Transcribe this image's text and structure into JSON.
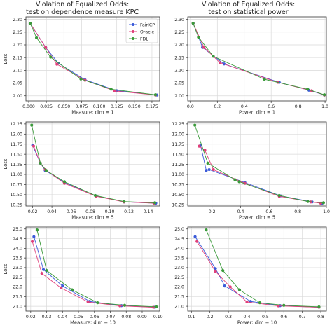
{
  "header": {
    "left_title": [
      "Violation of Equalized Odds:",
      "test on dependence measure KPC"
    ],
    "right_title": [
      "Violation of Equalized Odds:",
      "test on statistical power"
    ]
  },
  "legend": [
    {
      "name": "FairICP",
      "color": "#3b5bd9"
    },
    {
      "name": "Oracle",
      "color": "#e0407a"
    },
    {
      "name": "FDL",
      "color": "#3a9a3a"
    }
  ],
  "chart_data": [
    {
      "type": "line",
      "panel": "row1-left",
      "xlabel": "Measure: dim = 1",
      "ylabel": "Loss",
      "xlim": [
        -0.004,
        0.186
      ],
      "ylim": [
        1.98,
        2.31
      ],
      "xticks": [
        0.0,
        0.025,
        0.05,
        0.075,
        0.1,
        0.125,
        0.15,
        0.175
      ],
      "xtick_labels": [
        "0.000",
        "0.025",
        "0.050",
        "0.075",
        "0.100",
        "0.125",
        "0.150",
        "0.175"
      ],
      "yticks": [
        2.0,
        2.05,
        2.1,
        2.15,
        2.2,
        2.25,
        2.3
      ],
      "ytick_labels": [
        "2.00",
        "2.05",
        "2.10",
        "2.15",
        "2.20",
        "2.25",
        "2.30"
      ],
      "grid": true,
      "legend_position": "top-right",
      "series": [
        {
          "name": "FairICP",
          "x": [
            0.002,
            0.024,
            0.042,
            0.08,
            0.125,
            0.182
          ],
          "y": [
            2.285,
            2.19,
            2.128,
            2.063,
            2.02,
            2.003
          ]
        },
        {
          "name": "Oracle",
          "x": [
            0.002,
            0.024,
            0.04,
            0.08,
            0.122,
            0.18
          ],
          "y": [
            2.285,
            2.19,
            2.124,
            2.061,
            2.019,
            2.003
          ]
        },
        {
          "name": "FDL",
          "x": [
            0.002,
            0.011,
            0.031,
            0.074,
            0.117,
            0.18
          ],
          "y": [
            2.285,
            2.228,
            2.152,
            2.066,
            2.026,
            2.004
          ]
        }
      ]
    },
    {
      "type": "line",
      "panel": "row1-right",
      "xlabel": "Power: dim = 1",
      "ylabel": "",
      "xlim": [
        -0.02,
        1.01
      ],
      "ylim": [
        1.98,
        2.31
      ],
      "xticks": [
        0.0,
        0.2,
        0.4,
        0.6,
        0.8,
        1.0
      ],
      "xtick_labels": [
        "0.0",
        "0.2",
        "0.4",
        "0.6",
        "0.8",
        "1.0"
      ],
      "yticks": [
        2.0,
        2.05,
        2.1,
        2.15,
        2.2,
        2.25,
        2.3
      ],
      "ytick_labels": [
        "2.00",
        "2.05",
        "2.10",
        "2.15",
        "2.20",
        "2.25",
        "2.30"
      ],
      "grid": true,
      "series": [
        {
          "name": "FairICP",
          "x": [
            0.02,
            0.09,
            0.25,
            0.66,
            0.88,
            0.995
          ],
          "y": [
            2.285,
            2.19,
            2.125,
            2.053,
            2.022,
            2.003
          ]
        },
        {
          "name": "Oracle",
          "x": [
            0.02,
            0.1,
            0.22,
            0.65,
            0.9,
            0.995
          ],
          "y": [
            2.285,
            2.19,
            2.13,
            2.053,
            2.02,
            2.003
          ]
        },
        {
          "name": "FDL",
          "x": [
            0.02,
            0.06,
            0.17,
            0.55,
            0.87,
            0.995
          ],
          "y": [
            2.285,
            2.23,
            2.155,
            2.065,
            2.026,
            2.004
          ]
        }
      ]
    },
    {
      "type": "line",
      "panel": "row2-left",
      "xlabel": "Measure: dim = 5",
      "ylabel": "Loss",
      "xlim": [
        0.013,
        0.152
      ],
      "ylim": [
        10.22,
        12.3
      ],
      "xticks": [
        0.02,
        0.04,
        0.06,
        0.08,
        0.1,
        0.12,
        0.14
      ],
      "xtick_labels": [
        "0.02",
        "0.04",
        "0.06",
        "0.08",
        "0.10",
        "0.12",
        "0.14"
      ],
      "yticks": [
        10.25,
        10.5,
        10.75,
        11.0,
        11.25,
        11.5,
        11.75,
        12.0,
        12.25
      ],
      "ytick_labels": [
        "10.25",
        "10.50",
        "10.75",
        "11.00",
        "11.25",
        "11.50",
        "11.75",
        "12.00",
        "12.25"
      ],
      "grid": true,
      "series": [
        {
          "name": "FairICP",
          "x": [
            0.02,
            0.028,
            0.033,
            0.053,
            0.086,
            0.115,
            0.148
          ],
          "y": [
            11.72,
            11.28,
            11.1,
            10.8,
            10.47,
            10.32,
            10.29
          ]
        },
        {
          "name": "Oracle",
          "x": [
            0.021,
            0.028,
            0.033,
            0.053,
            0.086,
            0.115,
            0.146
          ],
          "y": [
            11.7,
            11.28,
            11.12,
            10.78,
            10.46,
            10.32,
            10.29
          ]
        },
        {
          "name": "FDL",
          "x": [
            0.019,
            0.028,
            0.034,
            0.053,
            0.085,
            0.115,
            0.147
          ],
          "y": [
            12.22,
            11.28,
            11.1,
            10.82,
            10.48,
            10.33,
            10.3
          ]
        }
      ]
    },
    {
      "type": "line",
      "panel": "row2-right",
      "xlabel": "Power: dim = 5",
      "ylabel": "",
      "xlim": [
        0.03,
        1.0
      ],
      "ylim": [
        10.22,
        12.3
      ],
      "xticks": [
        0.2,
        0.4,
        0.6,
        0.8,
        1.0
      ],
      "xtick_labels": [
        "0.2",
        "0.4",
        "0.6",
        "0.8",
        "1.0"
      ],
      "yticks": [
        10.25,
        10.5,
        10.75,
        11.0,
        11.25,
        11.5,
        11.75,
        12.0,
        12.25
      ],
      "ytick_labels": [
        "10.25",
        "10.50",
        "10.75",
        "11.00",
        "11.25",
        "11.50",
        "11.75",
        "12.00",
        "12.25"
      ],
      "grid": true,
      "series": [
        {
          "name": "FairICP",
          "x": [
            0.12,
            0.16,
            0.18,
            0.43,
            0.68,
            0.9,
            0.97
          ],
          "y": [
            11.72,
            11.1,
            11.12,
            10.8,
            10.47,
            10.32,
            10.29
          ]
        },
        {
          "name": "Oracle",
          "x": [
            0.11,
            0.15,
            0.21,
            0.43,
            0.67,
            0.89,
            0.96
          ],
          "y": [
            11.7,
            11.6,
            11.12,
            10.78,
            10.46,
            10.32,
            10.29
          ]
        },
        {
          "name": "FDL",
          "x": [
            0.08,
            0.17,
            0.36,
            0.39,
            0.67,
            0.87,
            0.98
          ],
          "y": [
            12.22,
            11.28,
            10.87,
            10.82,
            10.48,
            10.33,
            10.3
          ]
        }
      ]
    },
    {
      "type": "line",
      "panel": "row3-left",
      "xlabel": "Measure: dim = 10",
      "ylabel": "Loss",
      "xlim": [
        0.017,
        0.101
      ],
      "ylim": [
        20.75,
        25.1
      ],
      "xticks": [
        0.02,
        0.03,
        0.04,
        0.05,
        0.06,
        0.07,
        0.08,
        0.09,
        0.1
      ],
      "xtick_labels": [
        "0.02",
        "0.03",
        "0.04",
        "0.05",
        "0.06",
        "0.07",
        "0.08",
        "0.09",
        "0.10"
      ],
      "yticks": [
        21.0,
        21.5,
        22.0,
        22.5,
        23.0,
        23.5,
        24.0,
        24.5,
        25.0
      ],
      "ytick_labels": [
        "21.0",
        "21.5",
        "22.0",
        "22.5",
        "23.0",
        "23.5",
        "24.0",
        "24.5",
        "25.0"
      ],
      "grid": true,
      "series": [
        {
          "name": "FairICP",
          "x": [
            0.022,
            0.028,
            0.04,
            0.057,
            0.077,
            0.098
          ],
          "y": [
            24.6,
            22.9,
            22.05,
            21.25,
            21.03,
            20.95
          ]
        },
        {
          "name": "Oracle",
          "x": [
            0.021,
            0.027,
            0.039,
            0.056,
            0.076,
            0.097
          ],
          "y": [
            24.35,
            22.7,
            21.95,
            21.22,
            21.02,
            20.95
          ]
        },
        {
          "name": "FDL",
          "x": [
            0.024,
            0.03,
            0.046,
            0.062,
            0.079,
            0.099
          ],
          "y": [
            24.95,
            22.85,
            21.85,
            21.18,
            21.05,
            20.97
          ]
        }
      ]
    },
    {
      "type": "line",
      "panel": "row3-right",
      "xlabel": "Power: dim = 10",
      "ylabel": "",
      "xlim": [
        0.08,
        0.83
      ],
      "ylim": [
        20.75,
        25.1
      ],
      "xticks": [
        0.1,
        0.2,
        0.3,
        0.4,
        0.5,
        0.6,
        0.7,
        0.8
      ],
      "xtick_labels": [
        "0.1",
        "0.2",
        "0.3",
        "0.4",
        "0.5",
        "0.6",
        "0.7",
        "0.8"
      ],
      "yticks": [
        21.0,
        21.5,
        22.0,
        22.5,
        23.0,
        23.5,
        24.0,
        24.5,
        25.0
      ],
      "ytick_labels": [
        "21.0",
        "21.5",
        "22.0",
        "22.5",
        "23.0",
        "23.5",
        "24.0",
        "24.5",
        "25.0"
      ],
      "grid": true,
      "series": [
        {
          "name": "FairICP",
          "x": [
            0.12,
            0.23,
            0.28,
            0.42,
            0.58,
            0.79
          ],
          "y": [
            24.6,
            22.95,
            22.05,
            21.25,
            21.03,
            20.95
          ]
        },
        {
          "name": "Oracle",
          "x": [
            0.13,
            0.23,
            0.31,
            0.4,
            0.57,
            0.79
          ],
          "y": [
            24.35,
            22.8,
            22.0,
            21.22,
            21.02,
            20.95
          ]
        },
        {
          "name": "FDL",
          "x": [
            0.18,
            0.27,
            0.36,
            0.47,
            0.6,
            0.79
          ],
          "y": [
            24.95,
            22.85,
            21.85,
            21.18,
            21.05,
            20.97
          ]
        }
      ]
    }
  ]
}
